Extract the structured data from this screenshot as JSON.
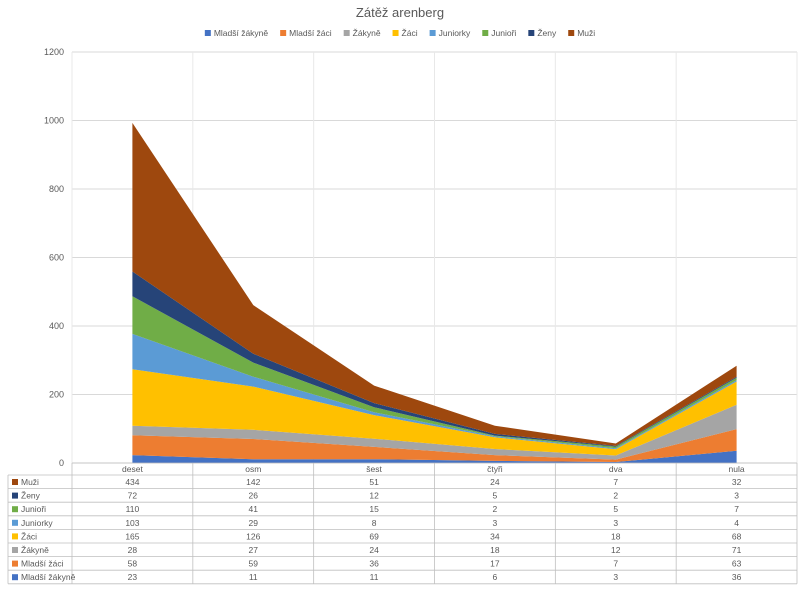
{
  "chart_data": {
    "type": "area",
    "stacked": true,
    "title": "Zátěž arenberg",
    "categories": [
      "deset",
      "osm",
      "šest",
      "čtyři",
      "dva",
      "nula"
    ],
    "series": [
      {
        "name": "Mladší žákyně",
        "color": "#4472C4",
        "values": [
          23,
          11,
          11,
          6,
          3,
          36
        ]
      },
      {
        "name": "Mladší žáci",
        "color": "#ED7D31",
        "values": [
          58,
          59,
          36,
          17,
          7,
          63
        ]
      },
      {
        "name": "Žákyně",
        "color": "#A5A5A5",
        "values": [
          28,
          27,
          24,
          18,
          12,
          71
        ]
      },
      {
        "name": "Žáci",
        "color": "#FFC000",
        "values": [
          165,
          126,
          69,
          34,
          18,
          68
        ]
      },
      {
        "name": "Juniorky",
        "color": "#5B9BD5",
        "values": [
          103,
          29,
          8,
          3,
          3,
          4
        ]
      },
      {
        "name": "Junioři",
        "color": "#70AD47",
        "values": [
          110,
          41,
          15,
          2,
          5,
          7
        ]
      },
      {
        "name": "Ženy",
        "color": "#264478",
        "values": [
          72,
          26,
          12,
          5,
          2,
          3
        ]
      },
      {
        "name": "Muži",
        "color": "#9E480E",
        "values": [
          434,
          142,
          51,
          24,
          7,
          32
        ]
      }
    ],
    "ylim": [
      0,
      1200
    ],
    "yticks": [
      0,
      200,
      400,
      600,
      800,
      1000,
      1200
    ],
    "grid": true,
    "legend_position": "top",
    "data_table": true
  }
}
